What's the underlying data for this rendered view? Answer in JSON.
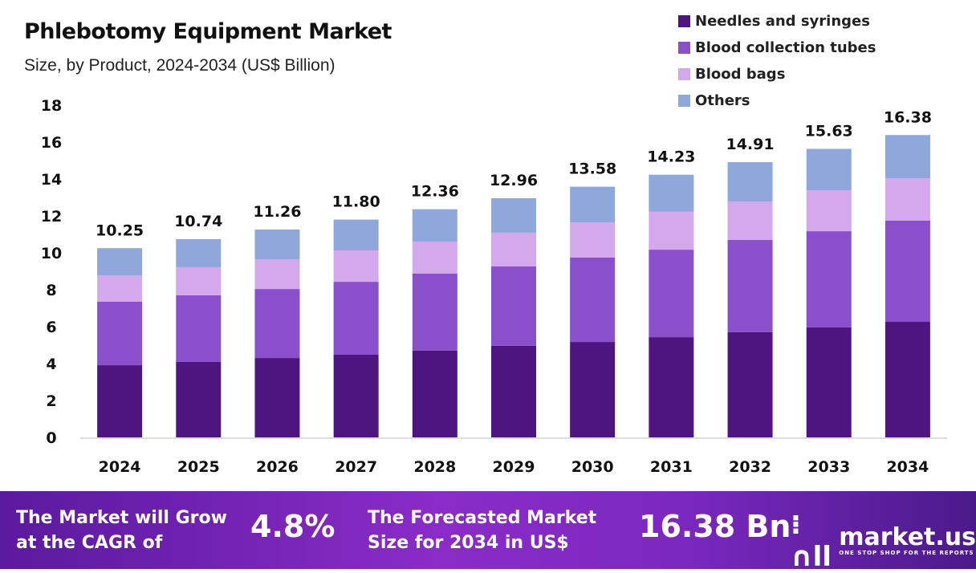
{
  "chart_data": {
    "type": "bar",
    "stacked": true,
    "title": "Phlebotomy Equipment Market",
    "subtitle": "Size, by Product, 2024-2034 (US$ Billion)",
    "categories": [
      "2024",
      "2025",
      "2026",
      "2027",
      "2028",
      "2029",
      "2030",
      "2031",
      "2032",
      "2033",
      "2034"
    ],
    "series": [
      {
        "name": "Needles and syringes",
        "color": "#4e1580",
        "values": [
          3.91,
          4.09,
          4.3,
          4.48,
          4.7,
          4.96,
          5.17,
          5.43,
          5.7,
          5.96,
          6.26
        ]
      },
      {
        "name": "Blood collection tubes",
        "color": "#8a4fcb",
        "values": [
          3.44,
          3.61,
          3.74,
          3.95,
          4.17,
          4.3,
          4.57,
          4.74,
          5.0,
          5.21,
          5.48
        ]
      },
      {
        "name": "Blood bags",
        "color": "#d3a8ec",
        "values": [
          1.43,
          1.52,
          1.61,
          1.7,
          1.74,
          1.83,
          1.91,
          2.05,
          2.08,
          2.22,
          2.3
        ]
      },
      {
        "name": "Others",
        "color": "#8ea8dc",
        "values": [
          1.47,
          1.52,
          1.61,
          1.67,
          1.75,
          1.87,
          1.93,
          2.01,
          2.13,
          2.24,
          2.34
        ]
      }
    ],
    "totals": [
      "10.25",
      "10.74",
      "11.26",
      "11.80",
      "12.36",
      "12.96",
      "13.58",
      "14.23",
      "14.91",
      "15.63",
      "16.38"
    ],
    "yticks": [
      "0",
      "2",
      "4",
      "6",
      "8",
      "10",
      "12",
      "14",
      "16",
      "18"
    ],
    "ylim": [
      0,
      18
    ],
    "grid": false,
    "legend": "top-right"
  },
  "banner": {
    "cagr_label": "The Market will Grow at the CAGR of",
    "cagr_value": "4.8%",
    "forecast_label": "The Forecasted Market Size for 2034 in US$",
    "forecast_value": "16.38 Bn",
    "logo_name": "market.us",
    "logo_tagline": "ONE STOP SHOP FOR THE REPORTS"
  }
}
